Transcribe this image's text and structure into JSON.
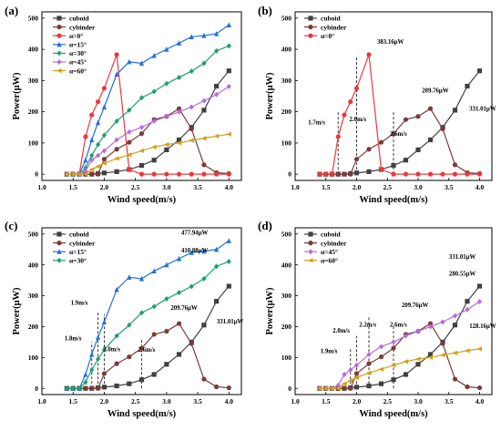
{
  "figure": {
    "x_axis_label": "Wind speed(m/s)",
    "y_axis_label": "Power(μW)"
  },
  "chart_data": [
    {
      "panel": "(a)",
      "type": "line",
      "xlabel": "Wind speed(m/s)",
      "ylabel": "Power(μW)",
      "xlim": [
        1.0,
        4.2
      ],
      "ylim": [
        -20,
        520
      ],
      "xticks": [
        "1.0",
        "1.5",
        "2.0",
        "2.5",
        "3.0",
        "3.5",
        "4.0"
      ],
      "yticks": [
        "0",
        "100",
        "200",
        "300",
        "400",
        "500"
      ],
      "grid": false,
      "legend_position": "top-left",
      "series": [
        {
          "name": "cuboid",
          "color": "#404040",
          "marker": "square",
          "x": [
            1.4,
            1.5,
            1.6,
            1.7,
            1.8,
            1.9,
            2.0,
            2.2,
            2.4,
            2.6,
            2.8,
            3.0,
            3.2,
            3.4,
            3.6,
            3.8,
            4.0
          ],
          "y": [
            0,
            0,
            0,
            0,
            0,
            2,
            4,
            8,
            15,
            28,
            45,
            78,
            110,
            150,
            205,
            282,
            331
          ]
        },
        {
          "name": "cybinder",
          "color": "#7a3b3b",
          "marker": "circle",
          "x": [
            1.4,
            1.5,
            1.6,
            1.7,
            1.8,
            1.9,
            2.0,
            2.2,
            2.4,
            2.6,
            2.8,
            3.0,
            3.2,
            3.4,
            3.6,
            3.8,
            4.0
          ],
          "y": [
            0,
            0,
            0,
            0,
            0,
            0,
            48,
            80,
            102,
            130,
            175,
            185,
            210,
            145,
            30,
            5,
            2
          ]
        },
        {
          "name": "α=0°",
          "color": "#e8383d",
          "marker": "circle",
          "x": [
            1.4,
            1.5,
            1.6,
            1.7,
            1.8,
            1.9,
            2.0,
            2.2,
            2.4,
            2.6,
            2.8,
            3.0,
            3.2,
            3.4,
            3.6,
            3.8,
            4.0
          ],
          "y": [
            0,
            0,
            0,
            120,
            190,
            232,
            275,
            383,
            15,
            0,
            0,
            0,
            0,
            0,
            0,
            0,
            0
          ]
        },
        {
          "name": "α=15°",
          "color": "#1f6fe0",
          "marker": "triangle",
          "x": [
            1.4,
            1.5,
            1.6,
            1.7,
            1.8,
            1.9,
            2.0,
            2.2,
            2.4,
            2.6,
            2.8,
            3.0,
            3.2,
            3.4,
            3.6,
            3.8,
            4.0
          ],
          "y": [
            0,
            0,
            0,
            45,
            110,
            165,
            215,
            320,
            360,
            355,
            380,
            400,
            420,
            440,
            444,
            450,
            478
          ]
        },
        {
          "name": "α=30°",
          "color": "#1fa06b",
          "marker": "diamond",
          "x": [
            1.4,
            1.5,
            1.6,
            1.7,
            1.8,
            1.9,
            2.0,
            2.2,
            2.4,
            2.6,
            2.8,
            3.0,
            3.2,
            3.4,
            3.6,
            3.8,
            4.0
          ],
          "y": [
            0,
            0,
            0,
            20,
            60,
            95,
            125,
            170,
            205,
            245,
            265,
            290,
            310,
            330,
            355,
            395,
            411
          ]
        },
        {
          "name": "α=45°",
          "color": "#b86be0",
          "marker": "diamond",
          "x": [
            1.4,
            1.5,
            1.6,
            1.7,
            1.8,
            1.9,
            2.0,
            2.2,
            2.4,
            2.6,
            2.8,
            3.0,
            3.2,
            3.4,
            3.6,
            3.8,
            4.0
          ],
          "y": [
            0,
            0,
            0,
            10,
            45,
            60,
            75,
            110,
            135,
            150,
            170,
            185,
            200,
            215,
            235,
            255,
            281
          ]
        },
        {
          "name": "α=60°",
          "color": "#d4a017",
          "marker": "triangle-left",
          "x": [
            1.4,
            1.5,
            1.6,
            1.7,
            1.8,
            1.9,
            2.0,
            2.2,
            2.4,
            2.6,
            2.8,
            3.0,
            3.2,
            3.4,
            3.6,
            3.8,
            4.0
          ],
          "y": [
            0,
            0,
            0,
            0,
            15,
            25,
            35,
            50,
            62,
            75,
            87,
            95,
            100,
            108,
            115,
            122,
            128
          ]
        }
      ],
      "annotations": []
    },
    {
      "panel": "(b)",
      "type": "line",
      "xlabel": "Wind speed(m/s)",
      "ylabel": "Power(μW)",
      "xlim": [
        1.0,
        4.2
      ],
      "ylim": [
        -20,
        520
      ],
      "xticks": [
        "1.0",
        "1.5",
        "2.0",
        "2.5",
        "3.0",
        "3.5",
        "4.0"
      ],
      "yticks": [
        "0",
        "100",
        "200",
        "300",
        "400",
        "500"
      ],
      "grid": false,
      "legend_position": "top-left",
      "series": [
        {
          "name": "cuboid",
          "color": "#404040",
          "marker": "square",
          "x": [
            1.4,
            1.5,
            1.6,
            1.7,
            1.8,
            1.9,
            2.0,
            2.2,
            2.4,
            2.6,
            2.8,
            3.0,
            3.2,
            3.4,
            3.6,
            3.8,
            4.0
          ],
          "y": [
            0,
            0,
            0,
            0,
            0,
            2,
            4,
            8,
            15,
            28,
            45,
            78,
            110,
            150,
            205,
            282,
            331
          ]
        },
        {
          "name": "cybinder",
          "color": "#7a3b3b",
          "marker": "circle",
          "x": [
            1.4,
            1.5,
            1.6,
            1.7,
            1.8,
            1.9,
            2.0,
            2.2,
            2.4,
            2.6,
            2.8,
            3.0,
            3.2,
            3.4,
            3.6,
            3.8,
            4.0
          ],
          "y": [
            0,
            0,
            0,
            0,
            0,
            0,
            48,
            80,
            102,
            130,
            175,
            185,
            210,
            145,
            30,
            5,
            2
          ]
        },
        {
          "name": "α=0°",
          "color": "#e8383d",
          "marker": "circle",
          "x": [
            1.4,
            1.5,
            1.6,
            1.7,
            1.8,
            1.9,
            2.0,
            2.2,
            2.4,
            2.6,
            2.8,
            3.0,
            3.2,
            3.4,
            3.6,
            3.8,
            4.0
          ],
          "y": [
            0,
            0,
            0,
            120,
            190,
            232,
            275,
            383,
            15,
            0,
            0,
            0,
            0,
            0,
            0,
            0,
            0
          ]
        }
      ],
      "vlines": [
        {
          "x": 1.7,
          "y0": 0,
          "y1": 200
        },
        {
          "x": 2.0,
          "y0": 0,
          "y1": 380
        },
        {
          "x": 2.6,
          "y0": 0,
          "y1": 200
        }
      ],
      "annotations": [
        {
          "text": "383.16μW",
          "x": 2.55,
          "y": 418
        },
        {
          "text": "209.76μW",
          "x": 3.28,
          "y": 262
        },
        {
          "text": "331.01μW",
          "x": 4.05,
          "y": 203
        },
        {
          "text": "1.7m/s",
          "x": 1.35,
          "y": 160
        },
        {
          "text": "2.0m/s",
          "x": 2.02,
          "y": 170
        },
        {
          "text": "2.6m/s",
          "x": 2.68,
          "y": 123
        }
      ]
    },
    {
      "panel": "(c)",
      "type": "line",
      "xlabel": "Wind speed(m/s)",
      "ylabel": "Power(μW)",
      "xlim": [
        1.0,
        4.2
      ],
      "ylim": [
        -20,
        520
      ],
      "xticks": [
        "1.0",
        "1.5",
        "2.0",
        "2.5",
        "3.0",
        "3.5",
        "4.0"
      ],
      "yticks": [
        "0",
        "100",
        "200",
        "300",
        "400",
        "500"
      ],
      "grid": false,
      "legend_position": "top-left",
      "series": [
        {
          "name": "cuboid",
          "color": "#404040",
          "marker": "square",
          "x": [
            1.4,
            1.5,
            1.6,
            1.7,
            1.8,
            1.9,
            2.0,
            2.2,
            2.4,
            2.6,
            2.8,
            3.0,
            3.2,
            3.4,
            3.6,
            3.8,
            4.0
          ],
          "y": [
            0,
            0,
            0,
            0,
            0,
            2,
            4,
            8,
            15,
            28,
            45,
            78,
            110,
            150,
            205,
            282,
            331
          ]
        },
        {
          "name": "cybinder",
          "color": "#7a3b3b",
          "marker": "circle",
          "x": [
            1.4,
            1.5,
            1.6,
            1.7,
            1.8,
            1.9,
            2.0,
            2.2,
            2.4,
            2.6,
            2.8,
            3.0,
            3.2,
            3.4,
            3.6,
            3.8,
            4.0
          ],
          "y": [
            0,
            0,
            0,
            0,
            0,
            0,
            48,
            80,
            102,
            130,
            175,
            185,
            210,
            145,
            30,
            5,
            2
          ]
        },
        {
          "name": "α=15°",
          "color": "#1f6fe0",
          "marker": "triangle",
          "x": [
            1.4,
            1.5,
            1.6,
            1.7,
            1.8,
            1.9,
            2.0,
            2.2,
            2.4,
            2.6,
            2.8,
            3.0,
            3.2,
            3.4,
            3.6,
            3.8,
            4.0
          ],
          "y": [
            0,
            0,
            0,
            45,
            110,
            165,
            215,
            320,
            360,
            355,
            380,
            400,
            420,
            440,
            444,
            450,
            478
          ]
        },
        {
          "name": "α=30°",
          "color": "#1fa06b",
          "marker": "diamond",
          "x": [
            1.4,
            1.5,
            1.6,
            1.7,
            1.8,
            1.9,
            2.0,
            2.2,
            2.4,
            2.6,
            2.8,
            3.0,
            3.2,
            3.4,
            3.6,
            3.8,
            4.0
          ],
          "y": [
            0,
            0,
            0,
            20,
            60,
            95,
            125,
            170,
            205,
            245,
            265,
            290,
            310,
            330,
            355,
            395,
            411
          ]
        }
      ],
      "vlines": [
        {
          "x": 1.8,
          "y0": 0,
          "y1": 150
        },
        {
          "x": 1.9,
          "y0": 0,
          "y1": 250
        },
        {
          "x": 2.0,
          "y0": 0,
          "y1": 240
        },
        {
          "x": 2.6,
          "y0": 0,
          "y1": 160
        }
      ],
      "annotations": [
        {
          "text": "477.94μW",
          "x": 3.45,
          "y": 498
        },
        {
          "text": "410.88μW",
          "x": 3.45,
          "y": 440
        },
        {
          "text": "209.76μW",
          "x": 3.28,
          "y": 255
        },
        {
          "text": "331.01μW",
          "x": 4.02,
          "y": 210
        },
        {
          "text": "1.9m/s",
          "x": 1.6,
          "y": 270
        },
        {
          "text": "1.8m/s",
          "x": 1.5,
          "y": 155
        },
        {
          "text": "2.0m/s",
          "x": 2.12,
          "y": 120
        },
        {
          "text": "2.6m/s",
          "x": 2.68,
          "y": 118
        }
      ]
    },
    {
      "panel": "(d)",
      "type": "line",
      "xlabel": "Wind speed(m/s)",
      "ylabel": "Power(μW)",
      "xlim": [
        1.0,
        4.2
      ],
      "ylim": [
        -20,
        520
      ],
      "xticks": [
        "1.0",
        "1.5",
        "2.0",
        "2.5",
        "3.0",
        "3.5",
        "4.0"
      ],
      "yticks": [
        "0",
        "100",
        "200",
        "300",
        "400",
        "500"
      ],
      "grid": false,
      "legend_position": "top-left",
      "series": [
        {
          "name": "cuboid",
          "color": "#404040",
          "marker": "square",
          "x": [
            1.4,
            1.5,
            1.6,
            1.7,
            1.8,
            1.9,
            2.0,
            2.2,
            2.4,
            2.6,
            2.8,
            3.0,
            3.2,
            3.4,
            3.6,
            3.8,
            4.0
          ],
          "y": [
            0,
            0,
            0,
            0,
            0,
            2,
            4,
            8,
            15,
            28,
            45,
            78,
            110,
            150,
            205,
            282,
            331
          ]
        },
        {
          "name": "cybinder",
          "color": "#7a3b3b",
          "marker": "circle",
          "x": [
            1.4,
            1.5,
            1.6,
            1.7,
            1.8,
            1.9,
            2.0,
            2.2,
            2.4,
            2.6,
            2.8,
            3.0,
            3.2,
            3.4,
            3.6,
            3.8,
            4.0
          ],
          "y": [
            0,
            0,
            0,
            0,
            0,
            0,
            48,
            80,
            102,
            130,
            175,
            185,
            210,
            145,
            30,
            5,
            2
          ]
        },
        {
          "name": "α=45°",
          "color": "#b86be0",
          "marker": "diamond",
          "x": [
            1.4,
            1.5,
            1.6,
            1.7,
            1.8,
            1.9,
            2.0,
            2.2,
            2.4,
            2.6,
            2.8,
            3.0,
            3.2,
            3.4,
            3.6,
            3.8,
            4.0
          ],
          "y": [
            0,
            0,
            0,
            10,
            45,
            60,
            75,
            110,
            135,
            150,
            170,
            185,
            200,
            215,
            235,
            255,
            281
          ]
        },
        {
          "name": "α=60°",
          "color": "#d4a017",
          "marker": "triangle-left",
          "x": [
            1.4,
            1.5,
            1.6,
            1.7,
            1.8,
            1.9,
            2.0,
            2.2,
            2.4,
            2.6,
            2.8,
            3.0,
            3.2,
            3.4,
            3.6,
            3.8,
            4.0
          ],
          "y": [
            0,
            0,
            0,
            0,
            15,
            25,
            35,
            50,
            62,
            75,
            87,
            95,
            100,
            108,
            115,
            122,
            128
          ]
        }
      ],
      "vlines": [
        {
          "x": 1.9,
          "y0": 0,
          "y1": 130
        },
        {
          "x": 2.0,
          "y0": 0,
          "y1": 170
        },
        {
          "x": 2.2,
          "y0": 0,
          "y1": 230
        },
        {
          "x": 2.6,
          "y0": 0,
          "y1": 200
        }
      ],
      "annotations": [
        {
          "text": "331.01μW",
          "x": 3.72,
          "y": 420
        },
        {
          "text": "280.55μW",
          "x": 3.72,
          "y": 365
        },
        {
          "text": "209.76μW",
          "x": 2.95,
          "y": 263
        },
        {
          "text": "128.16μW",
          "x": 4.05,
          "y": 195
        },
        {
          "text": "2.0m/s",
          "x": 1.75,
          "y": 180
        },
        {
          "text": "1.9m/s",
          "x": 1.55,
          "y": 115
        },
        {
          "text": "2.2m/s",
          "x": 2.18,
          "y": 200
        },
        {
          "text": "2.6m/s",
          "x": 2.68,
          "y": 200
        }
      ]
    }
  ]
}
